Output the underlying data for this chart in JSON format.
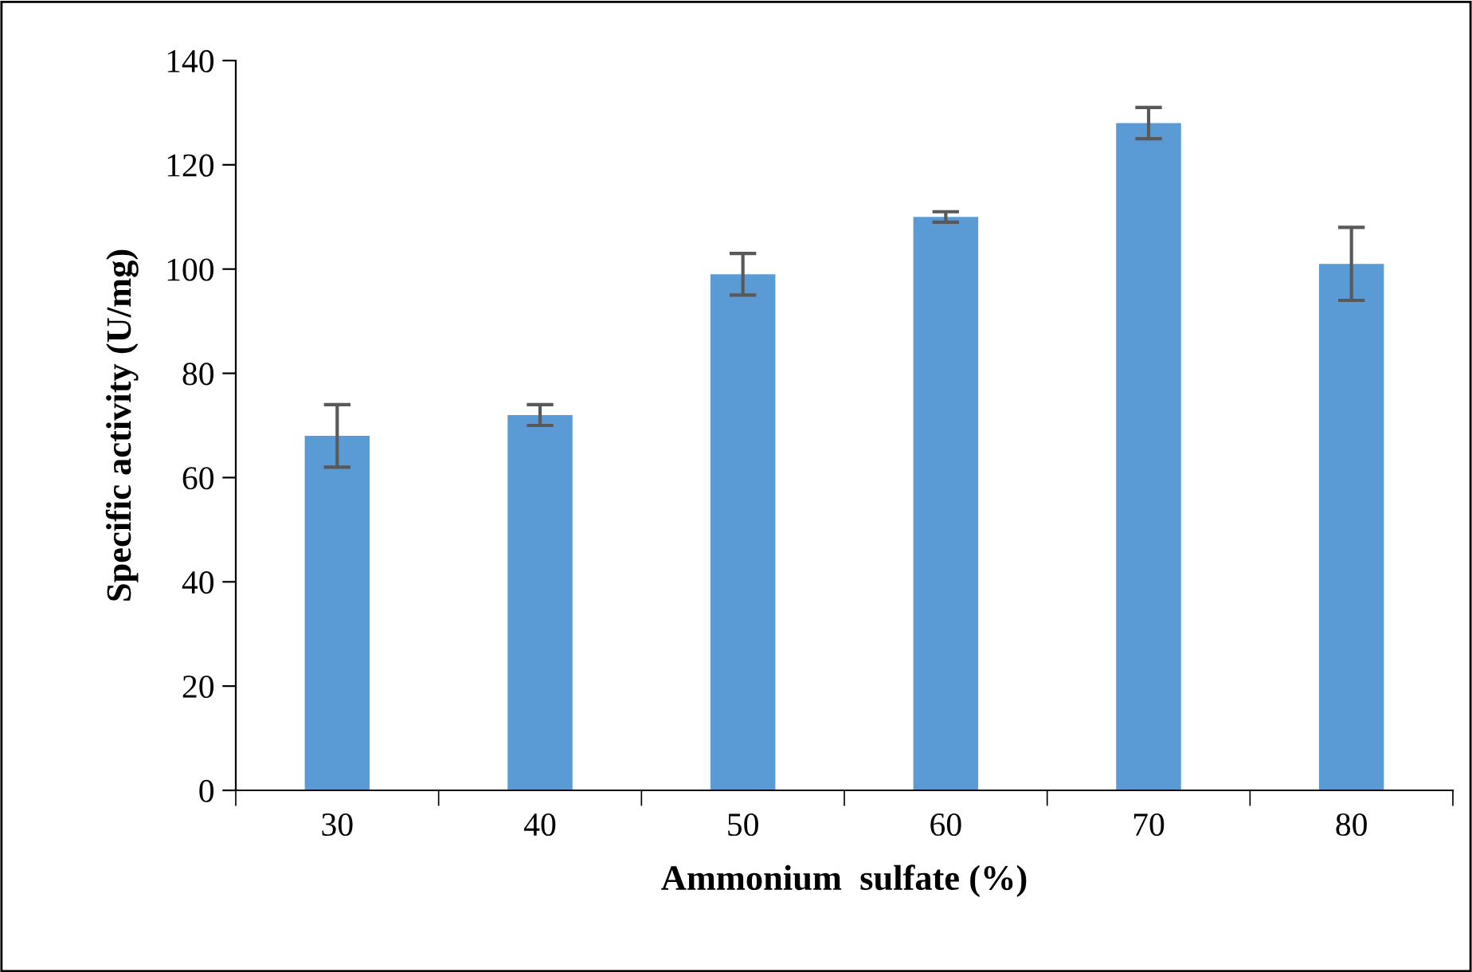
{
  "chart_data": {
    "type": "bar",
    "xlabel": "Ammonium  sulfate (%)",
    "ylabel": "Specific activity (U/mg)",
    "categories": [
      "30",
      "40",
      "50",
      "60",
      "70",
      "80"
    ],
    "values": [
      68,
      72,
      99,
      110,
      128,
      101
    ],
    "errors": [
      6,
      2,
      4,
      1,
      3,
      7
    ],
    "color": "#5b9bd5",
    "ylim": [
      0,
      140
    ],
    "yticks": [
      0,
      20,
      40,
      60,
      80,
      100,
      120,
      140
    ],
    "grid": false,
    "legend": false
  }
}
